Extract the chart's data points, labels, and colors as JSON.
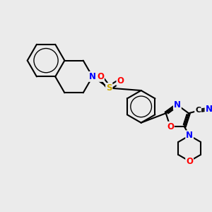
{
  "background_color": "#ebebeb",
  "bond_color": "#000000",
  "bond_width": 1.5,
  "atom_colors": {
    "N": "#0000ff",
    "O": "#ff0000",
    "S": "#ccaa00",
    "C": "#000000"
  },
  "font_size_atom": 8.5,
  "figsize": [
    3.0,
    3.0
  ],
  "dpi": 100
}
